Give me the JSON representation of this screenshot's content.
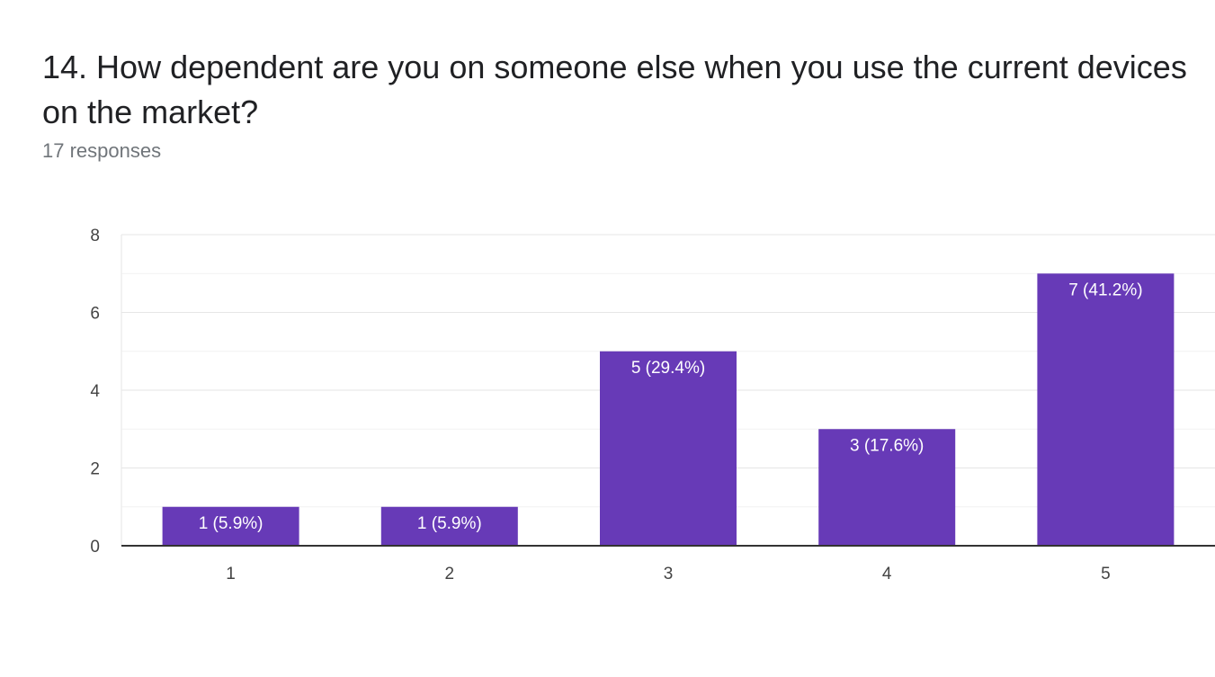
{
  "question": {
    "title": "14. How dependent are you on someone else when you use the current devices on the market?",
    "responses": "17 responses"
  },
  "chart_data": {
    "type": "bar",
    "categories": [
      "1",
      "2",
      "3",
      "4",
      "5"
    ],
    "values": [
      1,
      1,
      5,
      3,
      7
    ],
    "data_labels": [
      "1 (5.9%)",
      "1 (5.9%)",
      "5 (29.4%)",
      "3 (17.6%)",
      "7 (41.2%)"
    ],
    "y_ticks": [
      "0",
      "2",
      "4",
      "6",
      "8"
    ],
    "ylim": [
      0,
      8
    ],
    "grid": true,
    "legend": "none",
    "bar_color": "#673ab7"
  }
}
